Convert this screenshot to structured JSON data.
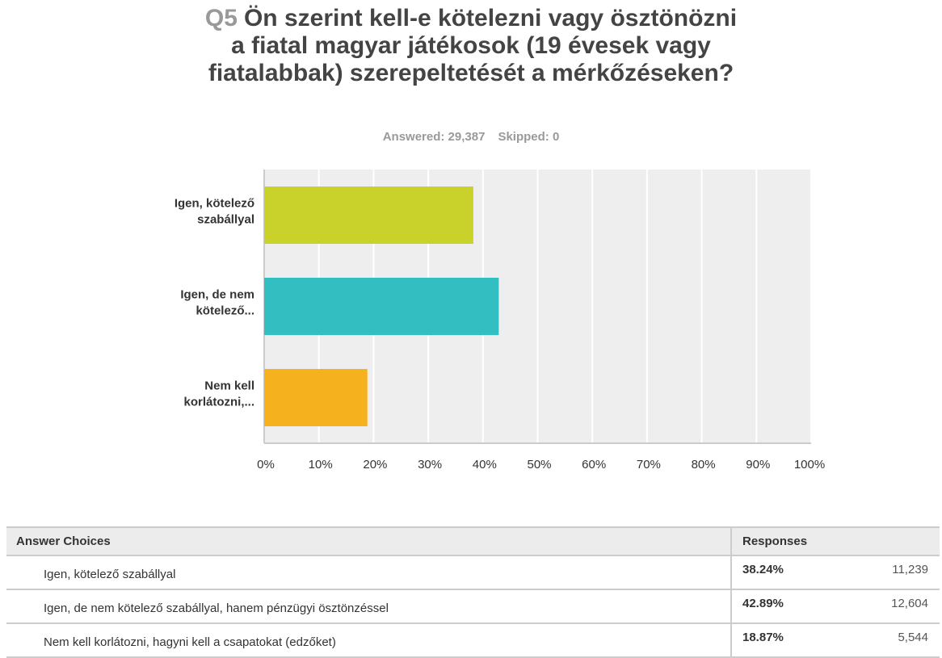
{
  "question": {
    "number": "Q5",
    "text": "Ön szerint kell-e kötelezni vagy ösztönözni a fiatal magyar játékosok (19 évesek vagy fiatalabbak) szerepeltetését a mérkőzéseken?"
  },
  "stats": {
    "answered": "Answered: 29,387",
    "skipped": "Skipped: 0"
  },
  "chart_data": {
    "type": "bar",
    "orientation": "horizontal",
    "categories": [
      [
        "Igen, kötelező",
        "szabállyal"
      ],
      [
        "Igen, de nem",
        "kötelező..."
      ],
      [
        "Nem kell",
        "korlátozni,..."
      ]
    ],
    "values": [
      38.24,
      42.89,
      18.87
    ],
    "colors": [
      "#c9d22b",
      "#33bfc1",
      "#f6b21e"
    ],
    "xlim": [
      0,
      100
    ],
    "xticks": [
      "0%",
      "10%",
      "20%",
      "30%",
      "40%",
      "50%",
      "60%",
      "70%",
      "80%",
      "90%",
      "100%"
    ],
    "grid": true,
    "plot_background": "#eeeeee"
  },
  "table": {
    "headers": {
      "choice": "Answer Choices",
      "responses": "Responses"
    },
    "rows": [
      {
        "choice": "Igen, kötelező szabállyal",
        "percent": "38.24%",
        "count": "11,239"
      },
      {
        "choice": "Igen, de nem kötelező szabállyal, hanem pénzügyi ösztönzéssel",
        "percent": "42.89%",
        "count": "12,604"
      },
      {
        "choice": "Nem kell korlátozni, hagyni kell a csapatokat (edzőket)",
        "percent": "18.87%",
        "count": "5,544"
      }
    ]
  }
}
